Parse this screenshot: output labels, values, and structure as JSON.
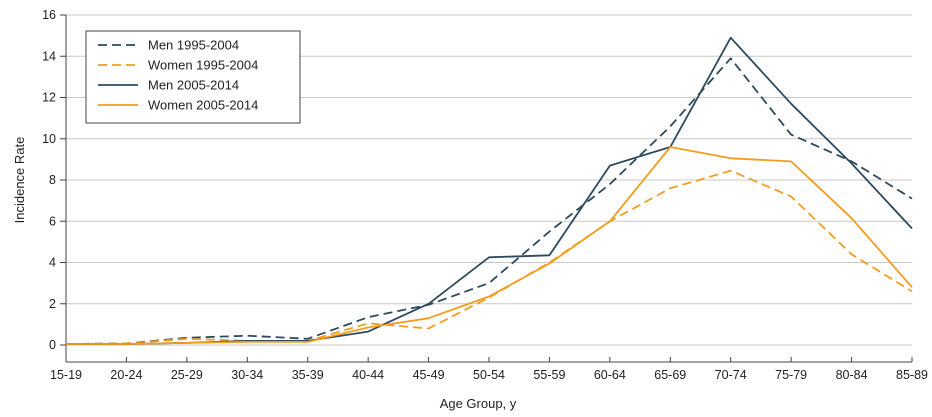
{
  "chart_data": {
    "type": "line",
    "xlabel": "Age Group, y",
    "ylabel": "Incidence Rate",
    "ylim": [
      0,
      16
    ],
    "yticks": [
      0,
      2,
      4,
      6,
      8,
      10,
      12,
      14,
      16
    ],
    "grid": "horizontal",
    "legend_position": "top-left",
    "categories": [
      "15-19",
      "20-24",
      "25-29",
      "30-34",
      "35-39",
      "40-44",
      "45-49",
      "50-54",
      "55-59",
      "60-64",
      "65-69",
      "70-74",
      "75-79",
      "80-84",
      "85-89"
    ],
    "series": [
      {
        "name": "Men 1995-2004",
        "color": "#2d4a5e",
        "dash": "dashed",
        "values": [
          0.05,
          0.08,
          0.35,
          0.45,
          0.3,
          1.35,
          1.95,
          3.0,
          5.5,
          7.8,
          10.6,
          13.9,
          10.2,
          8.9,
          7.1
        ]
      },
      {
        "name": "Women 1995-2004",
        "color": "#f39c1e",
        "dash": "dashed",
        "values": [
          0.05,
          0.08,
          0.3,
          0.2,
          0.2,
          1.05,
          0.8,
          2.3,
          4.0,
          6.0,
          7.6,
          8.45,
          7.2,
          4.4,
          2.6
        ]
      },
      {
        "name": "Men 2005-2014",
        "color": "#2d4a5e",
        "dash": "solid",
        "values": [
          0.05,
          0.05,
          0.1,
          0.2,
          0.2,
          0.65,
          2.0,
          4.25,
          4.35,
          8.7,
          9.6,
          14.9,
          11.7,
          8.8,
          5.65
        ]
      },
      {
        "name": "Women 2005-2014",
        "color": "#f39c1e",
        "dash": "solid",
        "values": [
          0.05,
          0.05,
          0.1,
          0.15,
          0.15,
          0.85,
          1.3,
          2.35,
          3.95,
          6.0,
          9.6,
          9.05,
          8.9,
          6.15,
          2.8
        ]
      }
    ]
  }
}
